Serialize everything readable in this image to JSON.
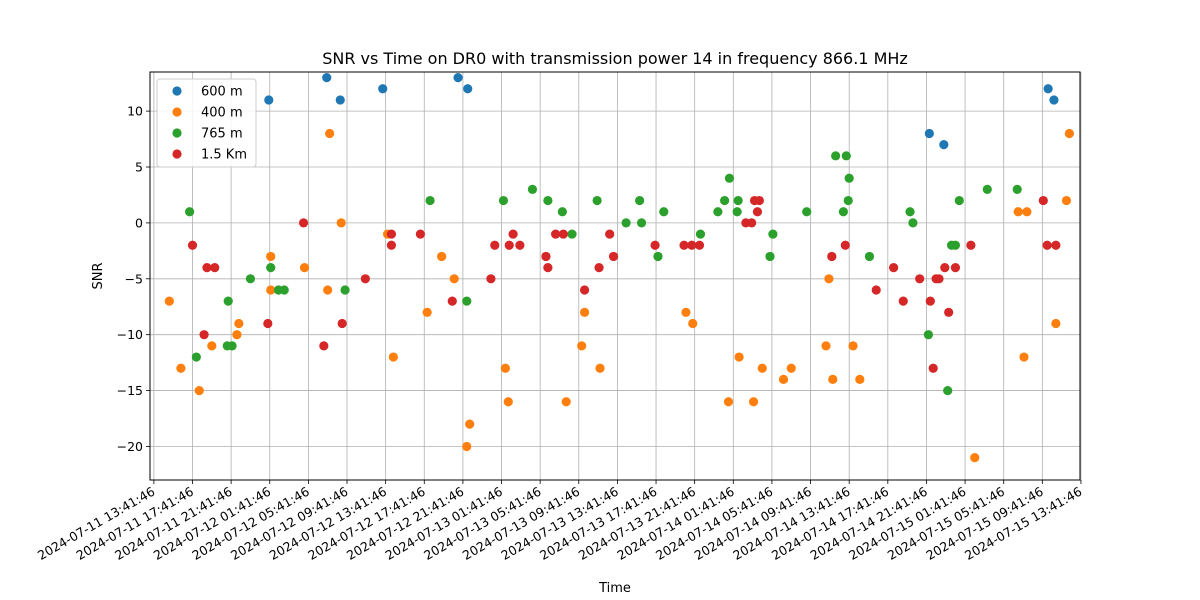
{
  "chart_data": {
    "type": "scatter",
    "title": "SNR vs Time on DR0 with transmission power 14 in frequency 866.1 MHz",
    "xlabel": "Time",
    "ylabel": "SNR",
    "xlim": [
      -0.4,
      95.9
    ],
    "ylim": [
      -23,
      13.5
    ],
    "x_unit": "hours after 2024-07-11 13:41:46",
    "x_ticks": [
      "2024-07-11 13:41:46",
      "2024-07-11 17:41:46",
      "2024-07-11 21:41:46",
      "2024-07-12 01:41:46",
      "2024-07-12 05:41:46",
      "2024-07-12 09:41:46",
      "2024-07-12 13:41:46",
      "2024-07-12 17:41:46",
      "2024-07-12 21:41:46",
      "2024-07-13 01:41:46",
      "2024-07-13 05:41:46",
      "2024-07-13 09:41:46",
      "2024-07-13 13:41:46",
      "2024-07-13 17:41:46",
      "2024-07-13 21:41:46",
      "2024-07-14 01:41:46",
      "2024-07-14 05:41:46",
      "2024-07-14 09:41:46",
      "2024-07-14 13:41:46",
      "2024-07-14 17:41:46",
      "2024-07-14 21:41:46",
      "2024-07-15 01:41:46",
      "2024-07-15 05:41:46",
      "2024-07-15 09:41:46",
      "2024-07-15 13:41:46"
    ],
    "y_ticks": [
      10,
      5,
      0,
      -5,
      -10,
      -15,
      -20
    ],
    "grid": true,
    "legend": "top-left",
    "series": [
      {
        "name": "600 m",
        "color": "#1f77b4",
        "points": [
          [
            11.9,
            11
          ],
          [
            17.9,
            13
          ],
          [
            19.3,
            11
          ],
          [
            23.7,
            12
          ],
          [
            31.5,
            13
          ],
          [
            32.5,
            12
          ],
          [
            80.3,
            8
          ],
          [
            81.8,
            7
          ],
          [
            92.6,
            12
          ],
          [
            93.2,
            11
          ]
        ]
      },
      {
        "name": "400 m",
        "color": "#ff7f0e",
        "points": [
          [
            1.6,
            -7
          ],
          [
            2.8,
            -13
          ],
          [
            4.7,
            -15
          ],
          [
            6.0,
            -11
          ],
          [
            8.6,
            -10
          ],
          [
            8.8,
            -9
          ],
          [
            12.1,
            -3
          ],
          [
            12.1,
            -6
          ],
          [
            15.6,
            -4
          ],
          [
            18.0,
            -6
          ],
          [
            18.2,
            8
          ],
          [
            19.4,
            0
          ],
          [
            24.2,
            -1
          ],
          [
            24.8,
            -12
          ],
          [
            28.3,
            -8
          ],
          [
            29.8,
            -3
          ],
          [
            31.1,
            -5
          ],
          [
            32.4,
            -20
          ],
          [
            32.7,
            -18
          ],
          [
            36.4,
            -13
          ],
          [
            36.7,
            -16
          ],
          [
            42.7,
            -16
          ],
          [
            44.3,
            -11
          ],
          [
            44.6,
            -8
          ],
          [
            46.2,
            -13
          ],
          [
            55.1,
            -8
          ],
          [
            55.8,
            -9
          ],
          [
            59.5,
            -16
          ],
          [
            60.6,
            -12
          ],
          [
            62.1,
            -16
          ],
          [
            63.0,
            -13
          ],
          [
            65.2,
            -14
          ],
          [
            66.0,
            -13
          ],
          [
            69.6,
            -11
          ],
          [
            69.9,
            -5
          ],
          [
            70.3,
            -14
          ],
          [
            72.4,
            -11
          ],
          [
            73.1,
            -14
          ],
          [
            85.0,
            -21
          ],
          [
            89.5,
            1
          ],
          [
            90.1,
            -12
          ],
          [
            90.4,
            1
          ],
          [
            93.4,
            -9
          ],
          [
            94.5,
            2
          ],
          [
            94.8,
            8
          ]
        ]
      },
      {
        "name": "765 m",
        "color": "#2ca02c",
        "points": [
          [
            3.7,
            1
          ],
          [
            4.4,
            -12
          ],
          [
            7.7,
            -7
          ],
          [
            7.6,
            -11
          ],
          [
            8.1,
            -11
          ],
          [
            10.0,
            -5
          ],
          [
            12.1,
            -4
          ],
          [
            12.9,
            -6
          ],
          [
            13.5,
            -6
          ],
          [
            19.8,
            -6
          ],
          [
            28.6,
            2
          ],
          [
            32.4,
            -7
          ],
          [
            36.2,
            2
          ],
          [
            39.2,
            3
          ],
          [
            40.8,
            2
          ],
          [
            42.3,
            1
          ],
          [
            43.3,
            -1
          ],
          [
            45.9,
            2
          ],
          [
            48.9,
            0
          ],
          [
            50.3,
            2
          ],
          [
            50.5,
            0
          ],
          [
            52.2,
            -3
          ],
          [
            52.8,
            1
          ],
          [
            56.6,
            -1
          ],
          [
            58.4,
            1
          ],
          [
            59.1,
            2
          ],
          [
            59.6,
            4
          ],
          [
            60.4,
            1
          ],
          [
            60.5,
            2
          ],
          [
            63.8,
            -3
          ],
          [
            64.1,
            -1
          ],
          [
            67.6,
            1
          ],
          [
            70.6,
            6
          ],
          [
            71.4,
            1
          ],
          [
            71.7,
            6
          ],
          [
            71.9,
            2
          ],
          [
            72.0,
            4
          ],
          [
            74.1,
            -3
          ],
          [
            78.3,
            1
          ],
          [
            78.6,
            0
          ],
          [
            80.2,
            -10
          ],
          [
            82.2,
            -15
          ],
          [
            82.6,
            -2
          ],
          [
            83.0,
            -2
          ],
          [
            83.4,
            2
          ],
          [
            86.3,
            3
          ],
          [
            89.4,
            3
          ]
        ]
      },
      {
        "name": "1.5 Km",
        "color": "#d62728",
        "points": [
          [
            4.0,
            -2
          ],
          [
            5.2,
            -10
          ],
          [
            5.5,
            -4
          ],
          [
            6.3,
            -4
          ],
          [
            11.8,
            -9
          ],
          [
            15.5,
            0
          ],
          [
            17.6,
            -11
          ],
          [
            19.5,
            -9
          ],
          [
            21.9,
            -5
          ],
          [
            24.6,
            -1
          ],
          [
            24.6,
            -2
          ],
          [
            27.6,
            -1
          ],
          [
            30.9,
            -7
          ],
          [
            34.9,
            -5
          ],
          [
            35.3,
            -2
          ],
          [
            36.8,
            -2
          ],
          [
            37.2,
            -1
          ],
          [
            37.9,
            -2
          ],
          [
            40.6,
            -3
          ],
          [
            40.8,
            -4
          ],
          [
            41.6,
            -1
          ],
          [
            42.4,
            -1
          ],
          [
            44.6,
            -6
          ],
          [
            46.1,
            -4
          ],
          [
            47.2,
            -1
          ],
          [
            47.6,
            -3
          ],
          [
            51.9,
            -2
          ],
          [
            54.9,
            -2
          ],
          [
            55.7,
            -2
          ],
          [
            56.5,
            -2
          ],
          [
            61.3,
            0
          ],
          [
            61.9,
            0
          ],
          [
            62.5,
            1
          ],
          [
            62.7,
            2
          ],
          [
            62.2,
            2
          ],
          [
            70.2,
            -3
          ],
          [
            71.6,
            -2
          ],
          [
            74.8,
            -6
          ],
          [
            76.6,
            -4
          ],
          [
            77.6,
            -7
          ],
          [
            79.3,
            -5
          ],
          [
            80.4,
            -7
          ],
          [
            80.7,
            -13
          ],
          [
            81.0,
            -5
          ],
          [
            81.3,
            -5
          ],
          [
            81.9,
            -4
          ],
          [
            82.3,
            -8
          ],
          [
            83.0,
            -4
          ],
          [
            84.6,
            -2
          ],
          [
            92.1,
            2
          ],
          [
            92.5,
            -2
          ],
          [
            93.4,
            -2
          ]
        ]
      }
    ]
  }
}
